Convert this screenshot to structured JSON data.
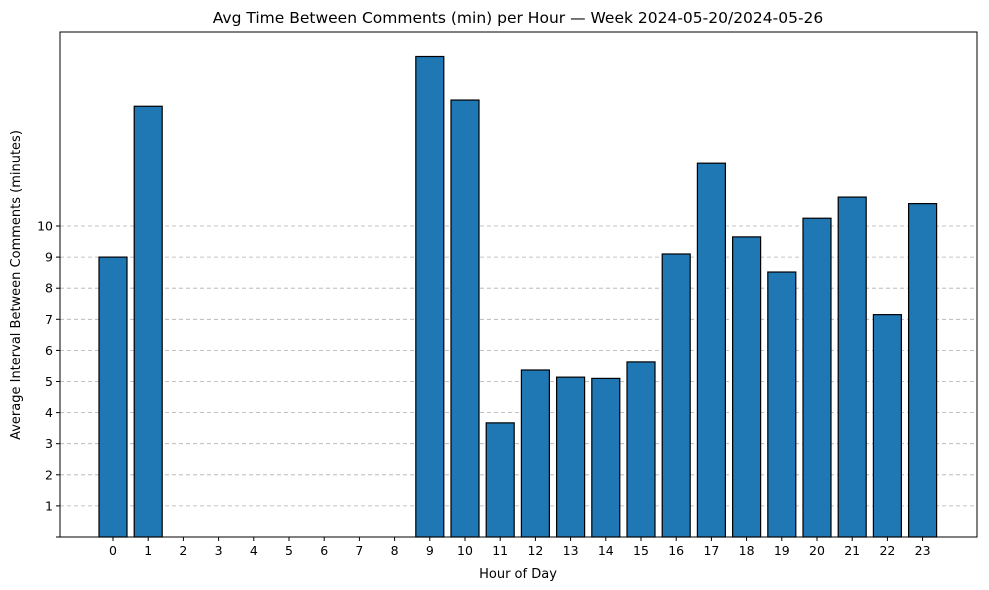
{
  "chart_data": {
    "type": "bar",
    "title": "Avg Time Between Comments (min) per Hour — Week 2024-05-20/2024-05-26",
    "xlabel": "Hour of Day",
    "ylabel": "Average Interval Between Comments (minutes)",
    "categories": [
      "0",
      "1",
      "2",
      "3",
      "4",
      "5",
      "6",
      "7",
      "8",
      "9",
      "10",
      "11",
      "12",
      "13",
      "14",
      "15",
      "16",
      "17",
      "18",
      "19",
      "20",
      "21",
      "22",
      "23"
    ],
    "values": [
      9.0,
      13.85,
      0,
      0,
      0,
      0,
      0,
      0,
      0,
      15.45,
      14.05,
      3.67,
      5.37,
      5.14,
      5.1,
      5.63,
      9.1,
      12.02,
      9.65,
      8.52,
      10.25,
      10.93,
      7.15,
      10.72
    ],
    "yticks": [
      "",
      "1",
      "2",
      "3",
      "4",
      "5",
      "6",
      "7",
      "8",
      "9",
      "10"
    ],
    "ytick_values": [
      0,
      1,
      2,
      3,
      4,
      5,
      6,
      7,
      8,
      9,
      10
    ],
    "ylim": [
      0,
      16.2
    ],
    "grid": "y-dashed",
    "bar_color": "#1f77b4",
    "edge_color": "#000000"
  }
}
